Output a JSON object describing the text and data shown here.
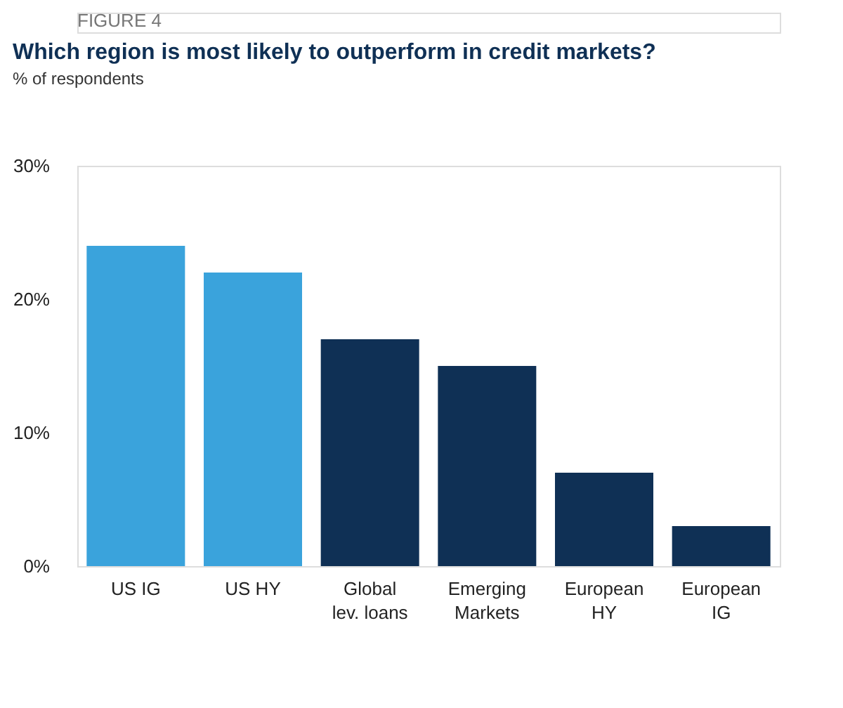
{
  "chart_data": {
    "type": "bar",
    "title": "Which region is most likely to outperform in credit markets?",
    "subtitle": "% of respondents",
    "annotations": [
      "FIGURE 4"
    ],
    "categories": [
      "US IG",
      "US HY",
      "Global lev. loans",
      "Emerging Markets",
      "European HY",
      "European IG"
    ],
    "values": [
      24,
      22,
      17,
      15,
      7,
      3
    ],
    "colors": [
      "#3aa3dc",
      "#3aa3dc",
      "#0f3055",
      "#0f3055",
      "#0f3055",
      "#0f3055"
    ],
    "ylim": [
      0,
      30
    ],
    "yticks": [
      {
        "value": 0,
        "label": "0%"
      },
      {
        "value": 10,
        "label": "10%"
      },
      {
        "value": 20,
        "label": "20%"
      },
      {
        "value": 30,
        "label": "30%"
      }
    ],
    "grid": false
  }
}
